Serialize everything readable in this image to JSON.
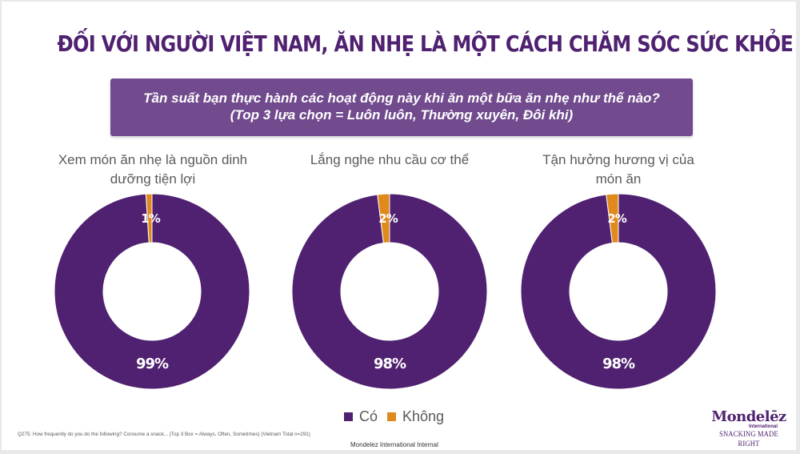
{
  "slide": {
    "title": "ĐỐI VỚI NGƯỜI VIỆT NAM, ĂN NHẸ LÀ MỘT CÁCH CHĂM SÓC SỨC KHỎE",
    "question_line1": "Tần suất bạn thực hành các hoạt động này khi ăn một bữa ăn nhẹ như thế nào?",
    "question_line2": "(Top 3 lựa chọn = Luôn luôn, Thường xuyên, Đôi khi)",
    "footnote": "Q275: How frequently do you do the following? Consume a snack... (Top 3 Box = Always, Often, Sometimes) (Vietnam Total n=291)",
    "internal_label": "Mondelez International Internal",
    "logo": {
      "brand": "Mondelēz",
      "sub": "International",
      "tagline": "SNACKING MADE RIGHT"
    }
  },
  "colors": {
    "primary": "#4f2170",
    "accent": "#e08a1e",
    "question_bg": "#714b8e"
  },
  "legend": {
    "items": [
      {
        "label": "Có",
        "color": "#4f2170"
      },
      {
        "label": "Không",
        "color": "#e08a1e"
      }
    ]
  },
  "charts": [
    {
      "label": "Xem món ăn nhẹ là nguồn dinh dưỡng tiện lợi",
      "yes": "99%",
      "no": "1%"
    },
    {
      "label": "Lắng nghe nhu cầu cơ thể",
      "yes": "98%",
      "no": "2%"
    },
    {
      "label": "Tận hưởng hương vị của món ăn",
      "yes": "98%",
      "no": "2%"
    }
  ],
  "chart_data": [
    {
      "type": "pie",
      "title": "Xem món ăn nhẹ là nguồn dinh dưỡng tiện lợi",
      "categories": [
        "Có",
        "Không"
      ],
      "values": [
        99,
        1
      ],
      "donut": true
    },
    {
      "type": "pie",
      "title": "Lắng nghe nhu cầu cơ thể",
      "categories": [
        "Có",
        "Không"
      ],
      "values": [
        98,
        2
      ],
      "donut": true
    },
    {
      "type": "pie",
      "title": "Tận hưởng hương vị của món ăn",
      "categories": [
        "Có",
        "Không"
      ],
      "values": [
        98,
        2
      ],
      "donut": true
    }
  ]
}
